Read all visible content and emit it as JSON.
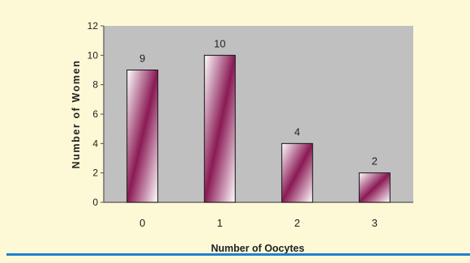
{
  "chart_data": {
    "type": "bar",
    "categories": [
      "0",
      "1",
      "2",
      "3"
    ],
    "values": [
      9,
      10,
      4,
      2
    ],
    "data_labels": [
      "9",
      "10",
      "4",
      "2"
    ],
    "xlabel": "Number of Oocytes",
    "ylabel": "Number of Women",
    "ylim": [
      0,
      12
    ],
    "yticks": [
      "0",
      "2",
      "4",
      "6",
      "8",
      "10",
      "12"
    ],
    "grid": false,
    "legend": "none",
    "colors": {
      "plot_background": "#c0c0c0",
      "page_background": "#fdf8d6",
      "bar_dark": "#8b1a55",
      "bar_light": "#ffffff",
      "accent_rule": "#1f7fd1"
    }
  }
}
